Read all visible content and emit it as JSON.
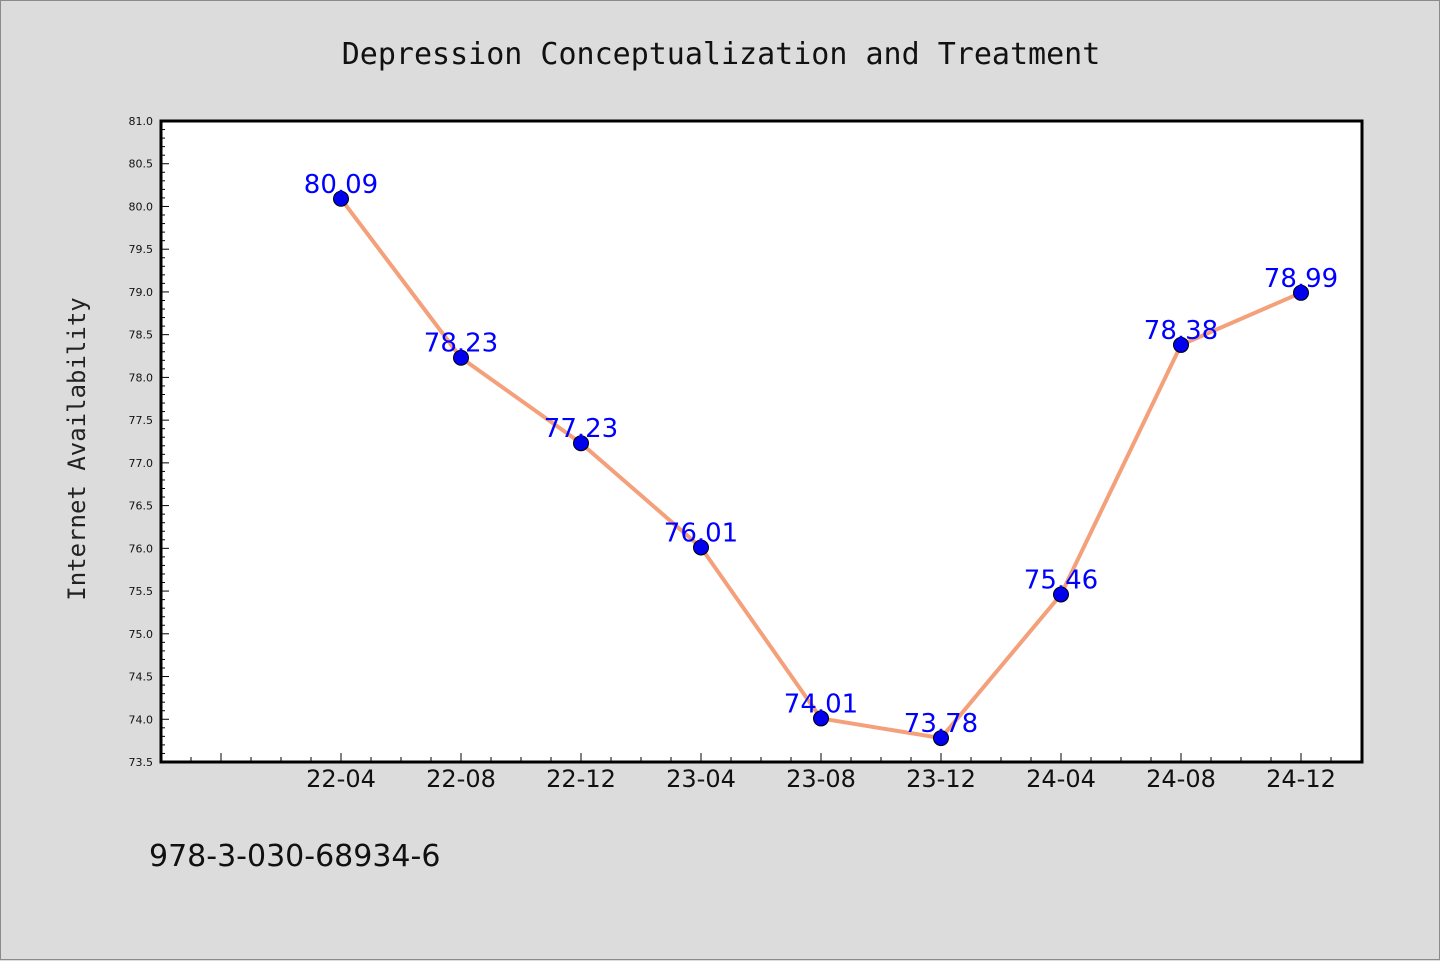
{
  "chart_data": {
    "type": "line",
    "title": "Depression Conceptualization and Treatment",
    "xlabel": "",
    "ylabel": "Internet Availability",
    "categories": [
      "22-04",
      "22-08",
      "22-12",
      "23-04",
      "23-08",
      "23-12",
      "24-04",
      "24-08",
      "24-12"
    ],
    "series": [
      {
        "values": [
          80.09,
          78.23,
          77.23,
          76.01,
          74.01,
          73.78,
          75.46,
          78.38,
          78.99
        ],
        "labels": [
          "80.09",
          "78.23",
          "77.23",
          "76.01",
          "74.01",
          "73.78",
          "75.46",
          "78.38",
          "78.99"
        ],
        "line_color": "#f4a07a",
        "marker_color": "#0000ee"
      }
    ],
    "ylim": [
      73.5,
      81.0
    ],
    "yticks": [
      "73.5",
      "74.0",
      "74.5",
      "75.0",
      "75.5",
      "76.0",
      "76.5",
      "77.0",
      "77.5",
      "78.0",
      "78.5",
      "79.0",
      "79.5",
      "80.0",
      "80.5",
      "81.0"
    ],
    "grid": false,
    "data_label_color": "#0000ff"
  },
  "footer": {
    "isbn": "978-3-030-68934-6"
  }
}
